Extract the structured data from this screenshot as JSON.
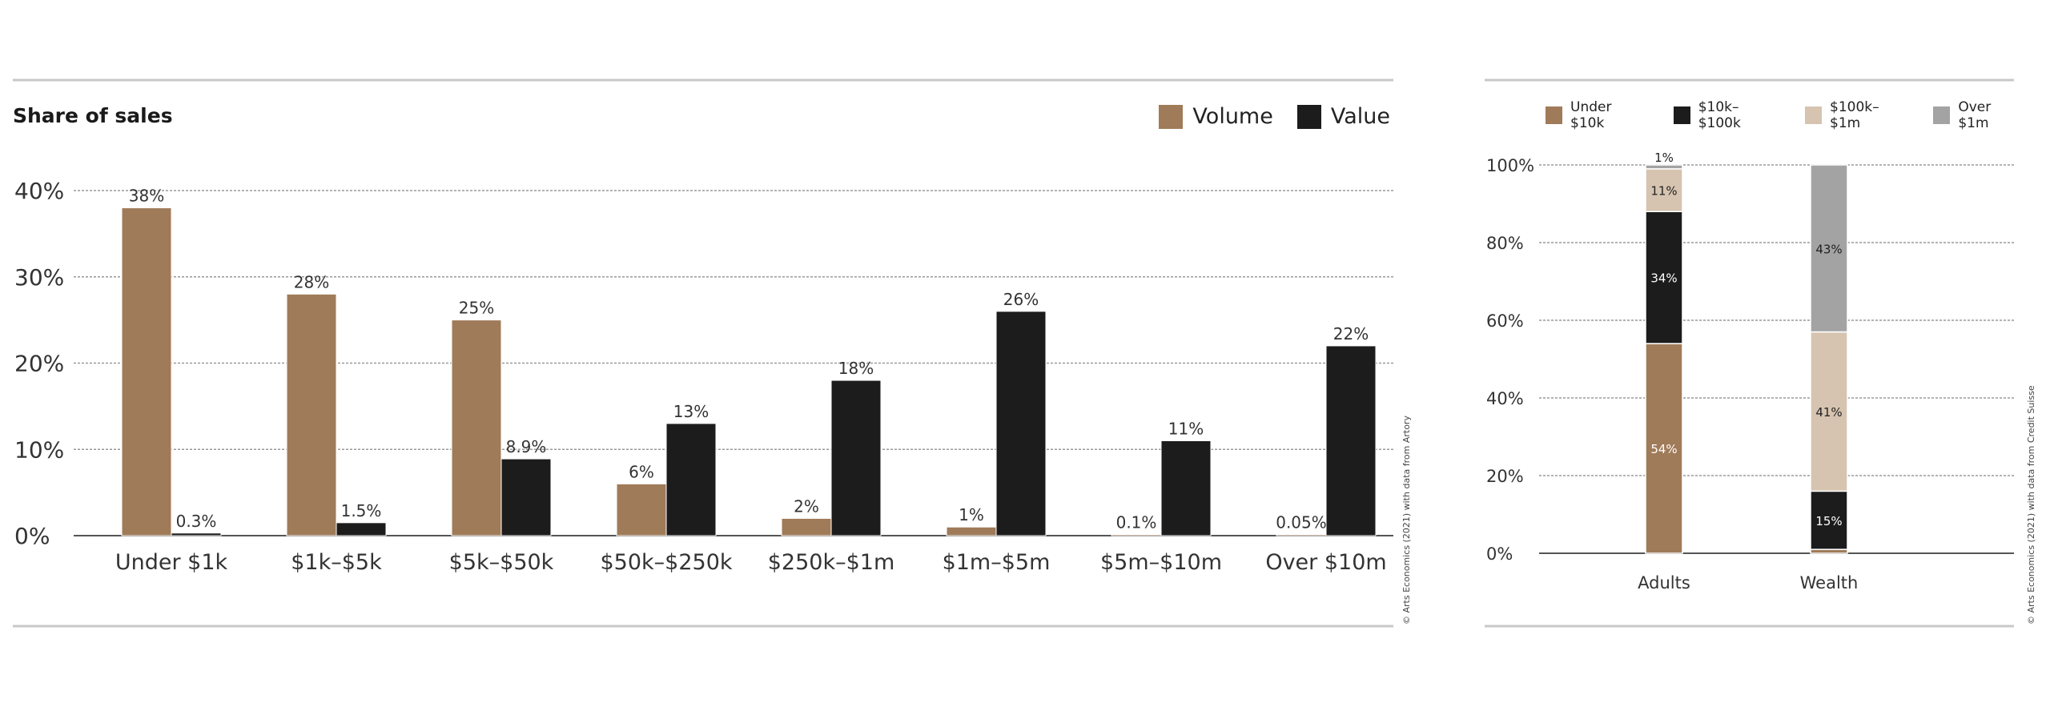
{
  "colors": {
    "volume": "#a07b59",
    "value": "#1c1c1c",
    "under_10k": "#a07b59",
    "k10_100k": "#1c1c1c",
    "k100_1m": "#d6c4b0",
    "over_1m": "#a3a3a3",
    "grid": "#9a9a9a",
    "rule": "#c8c8c8"
  },
  "left": {
    "title": "Share of sales",
    "credit": "© Arts Economics (2021) with data from Artory"
  },
  "right": {
    "credit": "© Arts Economics (2021) with data from Credit Suisse"
  },
  "chart_data": [
    {
      "type": "bar",
      "title": "Share of sales",
      "categories": [
        "Under $1k",
        "$1k–$5k",
        "$5k–$50k",
        "$50k–$250k",
        "$250k–$1m",
        "$1m–$5m",
        "$5m–$10m",
        "Over $10m"
      ],
      "series": [
        {
          "name": "Volume",
          "values": [
            38,
            28,
            25,
            6,
            2,
            1,
            0.1,
            0.05
          ],
          "labels": [
            "38%",
            "28%",
            "25%",
            "6%",
            "2%",
            "1%",
            "0.1%",
            "0.05%"
          ],
          "color": "#a07b59"
        },
        {
          "name": "Value",
          "values": [
            0.3,
            1.5,
            8.9,
            13,
            18,
            26,
            11,
            22
          ],
          "labels": [
            "0.3%",
            "1.5%",
            "8.9%",
            "13%",
            "18%",
            "26%",
            "11%",
            "22%"
          ],
          "color": "#1c1c1c"
        }
      ],
      "ylim": [
        0,
        40
      ],
      "yticks": [
        "0%",
        "10%",
        "20%",
        "30%",
        "40%"
      ],
      "grid": true,
      "legend": "top-right"
    },
    {
      "type": "bar",
      "stacked": true,
      "categories": [
        "Adults",
        "Wealth"
      ],
      "series": [
        {
          "name": "Under $10k",
          "values": [
            54,
            1
          ],
          "labels": [
            "54%",
            "1%"
          ],
          "color": "#a07b59"
        },
        {
          "name": "$10k–$100k",
          "values": [
            34,
            15
          ],
          "labels": [
            "34%",
            "15%"
          ],
          "color": "#1c1c1c"
        },
        {
          "name": "$100k–$1m",
          "values": [
            11,
            41
          ],
          "labels": [
            "11%",
            "41%"
          ],
          "color": "#d6c4b0"
        },
        {
          "name": "Over $1m",
          "values": [
            1,
            43
          ],
          "labels": [
            "1%",
            "43%"
          ],
          "color": "#a3a3a3"
        }
      ],
      "ylim": [
        0,
        100
      ],
      "yticks": [
        "0%",
        "20%",
        "40%",
        "60%",
        "80%",
        "100%"
      ],
      "grid": true,
      "legend": "top"
    }
  ]
}
